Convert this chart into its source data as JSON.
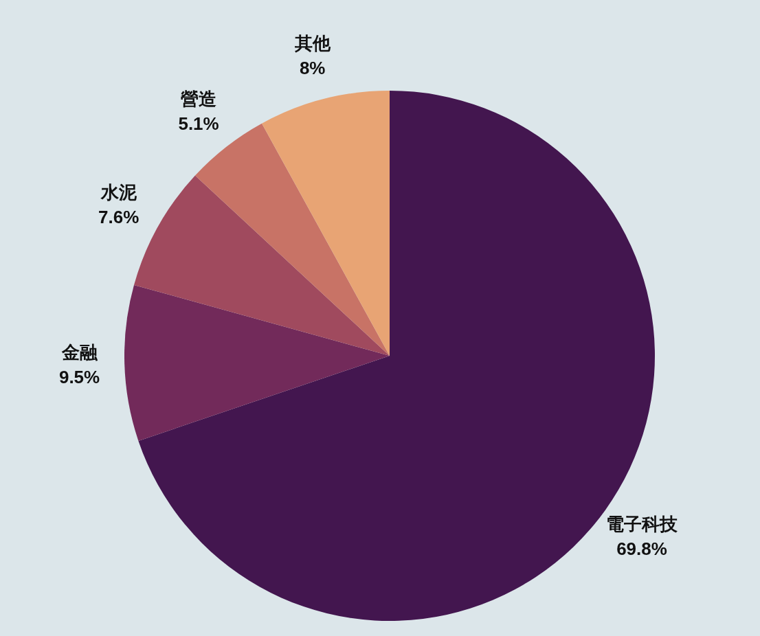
{
  "chart_data": {
    "type": "pie",
    "categories": [
      "電子科技",
      "金融",
      "水泥",
      "營造",
      "其他"
    ],
    "values": [
      69.8,
      9.5,
      7.6,
      5.1,
      8
    ],
    "value_labels": [
      "69.8%",
      "9.5%",
      "7.6%",
      "5.1%",
      "8%"
    ],
    "colors": [
      "#43164f",
      "#722a5a",
      "#a04a5e",
      "#c87366",
      "#e8a474"
    ]
  }
}
